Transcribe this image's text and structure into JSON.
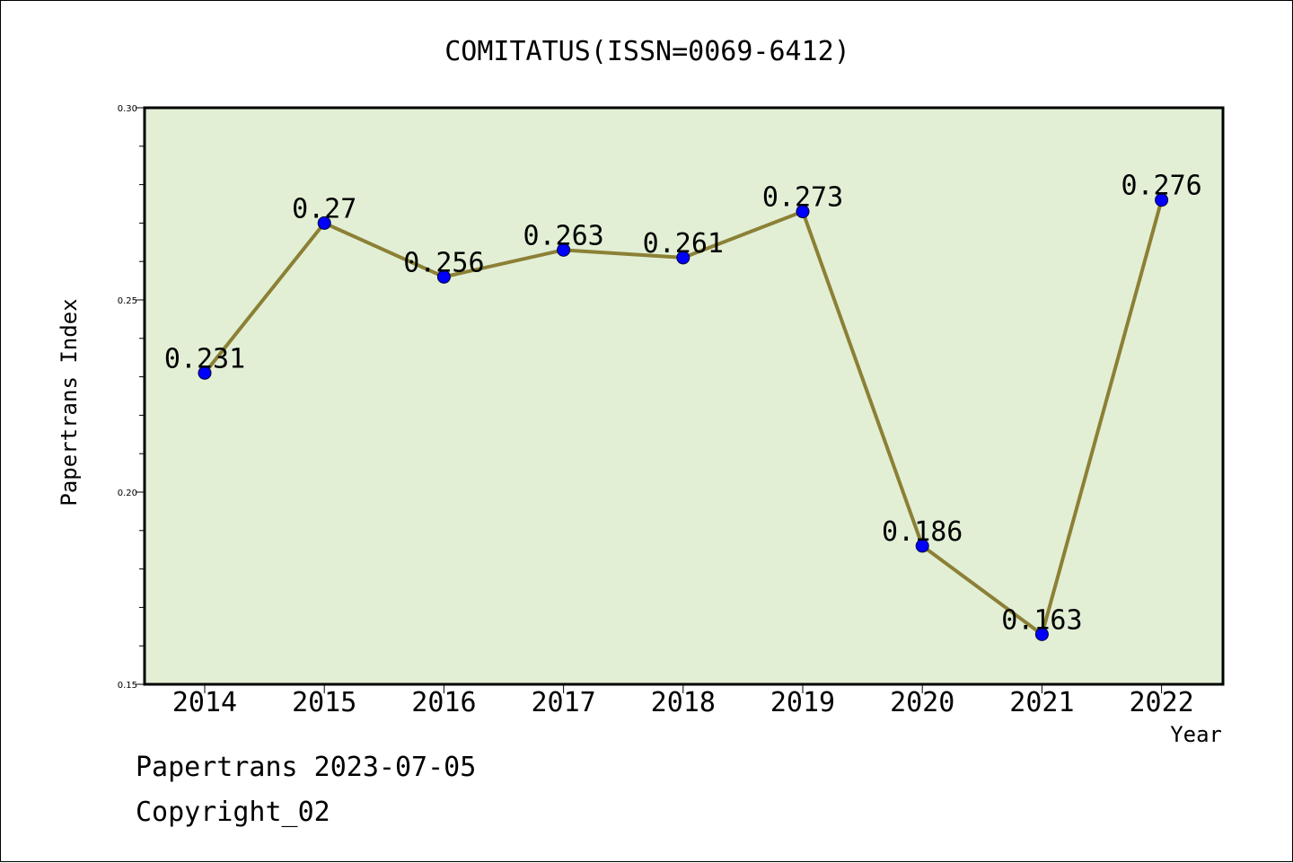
{
  "footer": {
    "line1": "Papertrans 2023-07-05",
    "line2": "Copyright_02"
  },
  "colors": {
    "plot_background": "#e2efd5",
    "line": "#8b8035",
    "marker": "#0000ff"
  },
  "chart_data": {
    "type": "line",
    "title": "COMITATUS(ISSN=0069-6412)",
    "xlabel": "Year",
    "ylabel": "Papertrans Index",
    "categories": [
      "2014",
      "2015",
      "2016",
      "2017",
      "2018",
      "2019",
      "2020",
      "2021",
      "2022"
    ],
    "series": [
      {
        "values": [
          0.231,
          0.27,
          0.256,
          0.263,
          0.261,
          0.273,
          0.186,
          0.163,
          0.276
        ],
        "labels": [
          "0.231",
          "0.27",
          "0.256",
          "0.263",
          "0.261",
          "0.273",
          "0.186",
          "0.163",
          "0.276"
        ]
      }
    ],
    "ylim": [
      0.15,
      0.3
    ],
    "yticks": [
      0.15,
      0.2,
      0.25,
      0.3
    ],
    "ytick_labels": [
      "0.15",
      "0.20",
      "0.25",
      "0.30"
    ],
    "grid": false
  }
}
